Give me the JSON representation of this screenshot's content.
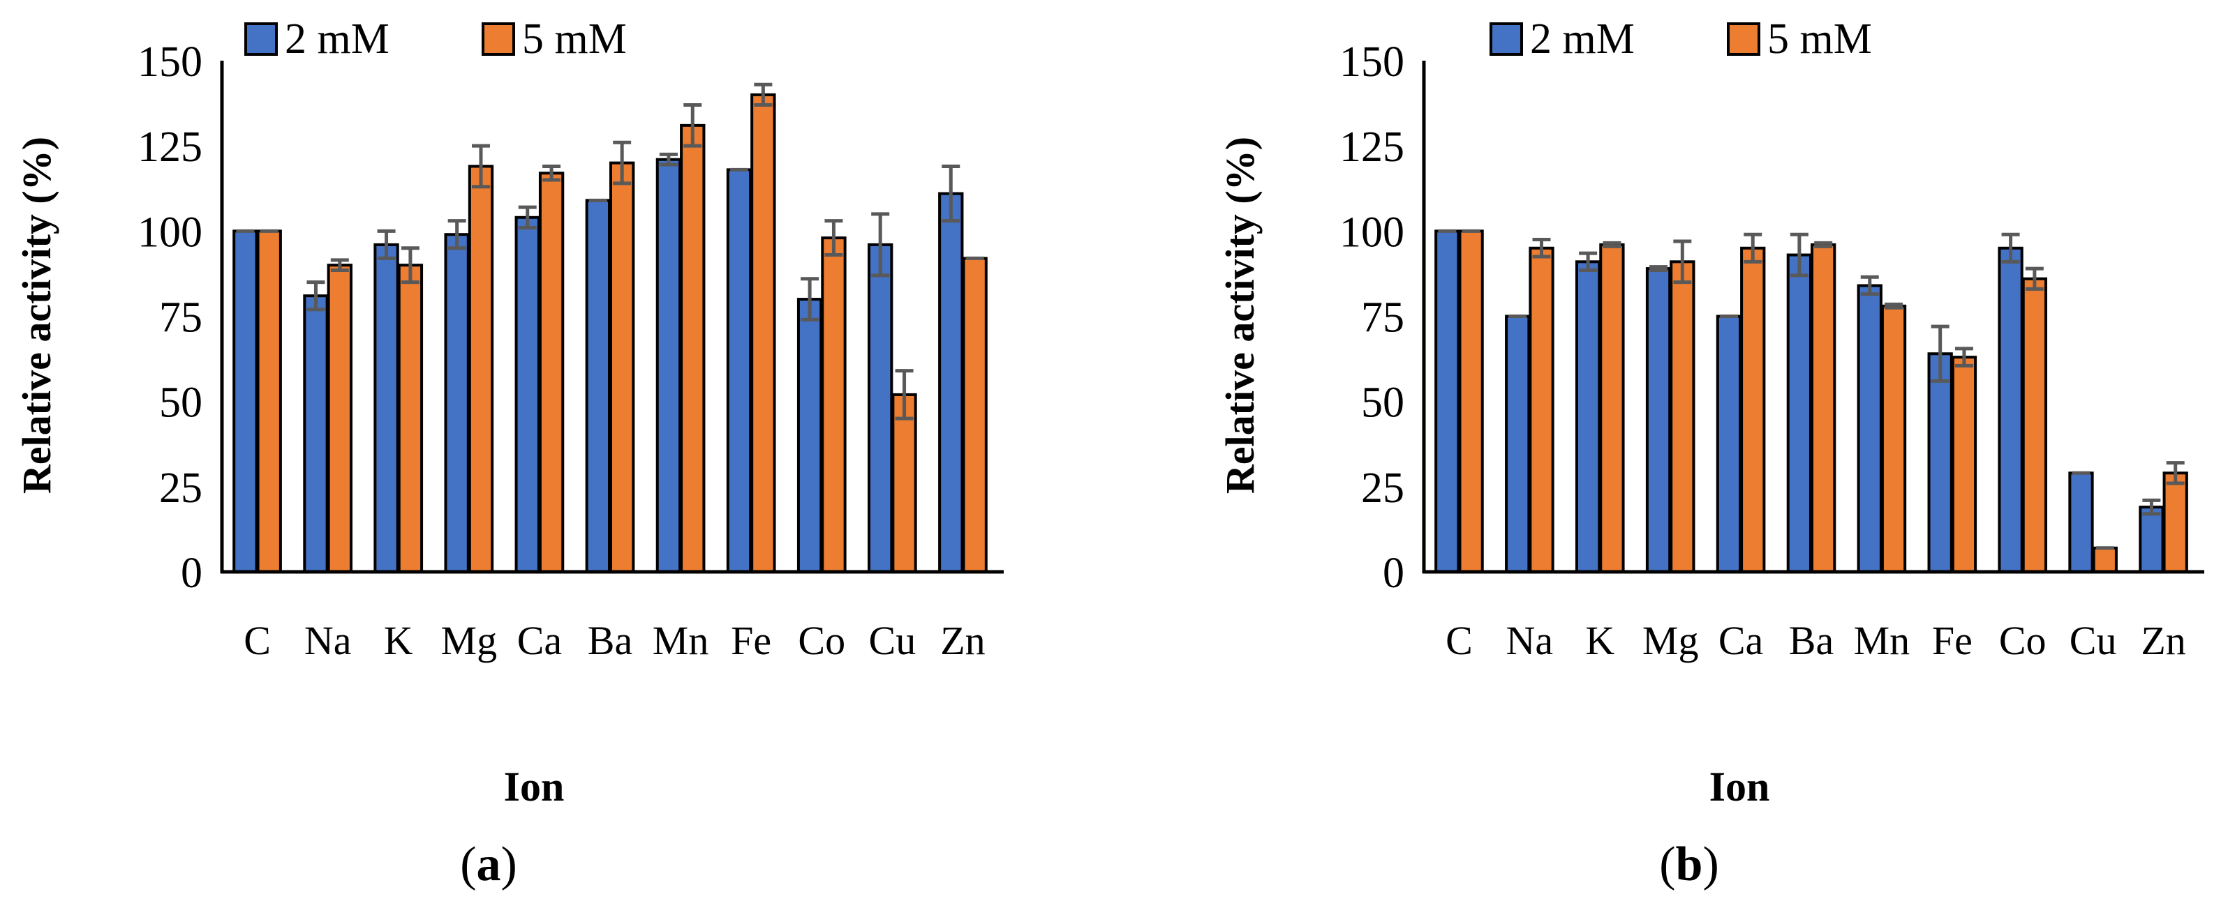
{
  "colors": {
    "series_2mM": "#4472C4",
    "series_5mM": "#ED7D31",
    "bar_outline": "#000000",
    "error_bar": "#595959"
  },
  "chart_data": [
    {
      "type": "bar",
      "panel_label": "a",
      "ylabel": "Relative activity (%)",
      "xlabel": "Ion",
      "ylim": [
        0,
        150
      ],
      "yticks": [
        "0",
        "25",
        "50",
        "75",
        "100",
        "125",
        "150"
      ],
      "legend_position": "top-left",
      "categories": [
        "C",
        "Na",
        "K",
        "Mg",
        "Ca",
        "Ba",
        "Mn",
        "Fe",
        "Co",
        "Cu",
        "Zn"
      ],
      "series": [
        {
          "name": "2 mM",
          "values": [
            100,
            81,
            96,
            99,
            104,
            109,
            121,
            118,
            80,
            96,
            111
          ],
          "errors": [
            0,
            4,
            4,
            4,
            3,
            0,
            1.5,
            0,
            6,
            9,
            8
          ]
        },
        {
          "name": "5 mM",
          "values": [
            100,
            90,
            90,
            119,
            117,
            120,
            131,
            140,
            98,
            52,
            92
          ],
          "errors": [
            0,
            1.5,
            5,
            6,
            2,
            6,
            6,
            3,
            5,
            7,
            0
          ]
        }
      ]
    },
    {
      "type": "bar",
      "panel_label": "b",
      "ylabel": "Relative activity (%)",
      "xlabel": "Ion",
      "ylim": [
        0,
        150
      ],
      "yticks": [
        "0",
        "25",
        "50",
        "75",
        "100",
        "125",
        "150"
      ],
      "legend_position": "top-left",
      "categories": [
        "C",
        "Na",
        "K",
        "Mg",
        "Ca",
        "Ba",
        "Mn",
        "Fe",
        "Co",
        "Cu",
        "Zn"
      ],
      "series": [
        {
          "name": "2 mM",
          "values": [
            100,
            75,
            91,
            89,
            75,
            93,
            84,
            64,
            95,
            29,
            19
          ],
          "errors": [
            0,
            0,
            2.5,
            0.5,
            0,
            6,
            2.5,
            8,
            4,
            0,
            2
          ]
        },
        {
          "name": "5 mM",
          "values": [
            100,
            95,
            96,
            91,
            95,
            96,
            78,
            63,
            86,
            7,
            29
          ],
          "errors": [
            0,
            2.5,
            0.5,
            6,
            4,
            0.5,
            0.5,
            2.5,
            3,
            0,
            3
          ]
        }
      ]
    }
  ]
}
